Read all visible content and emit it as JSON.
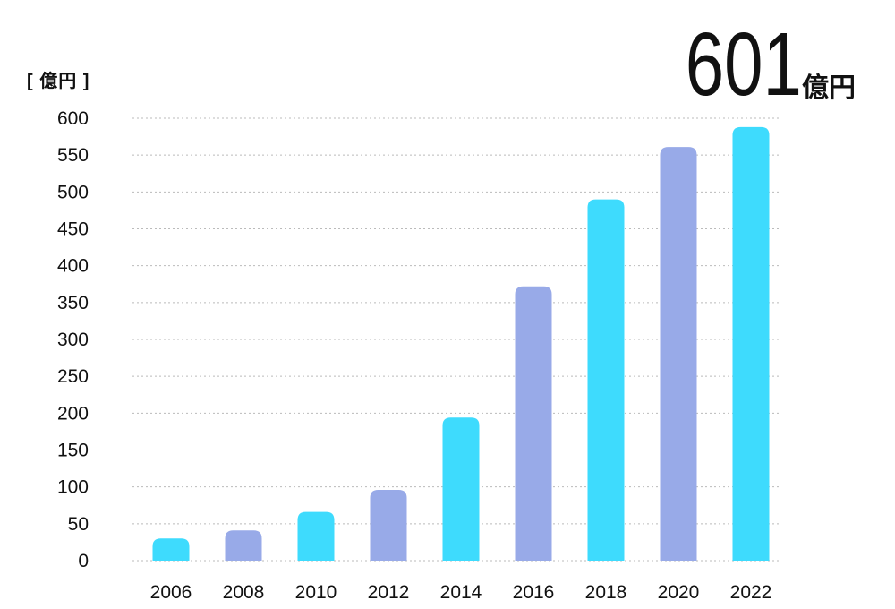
{
  "header": {
    "unit_label": "[ 億円 ]",
    "headline_value": "601",
    "headline_unit": "億円"
  },
  "chart_data": {
    "type": "bar",
    "categories": [
      "2006",
      "2008",
      "2010",
      "2012",
      "2014",
      "2016",
      "2018",
      "2020",
      "2022"
    ],
    "values": [
      30,
      41,
      66,
      96,
      194,
      372,
      490,
      561,
      588
    ],
    "ylim": [
      0,
      600
    ],
    "yticks": [
      0,
      50,
      100,
      150,
      200,
      250,
      300,
      350,
      400,
      450,
      500,
      550,
      600
    ],
    "ylabel": "[ 億円 ]",
    "xlabel": "",
    "grid": true,
    "legend": "none",
    "colors": {
      "primary": "#3edbfd",
      "secondary": "#98aae8",
      "grid": "#bbbbbb"
    }
  }
}
